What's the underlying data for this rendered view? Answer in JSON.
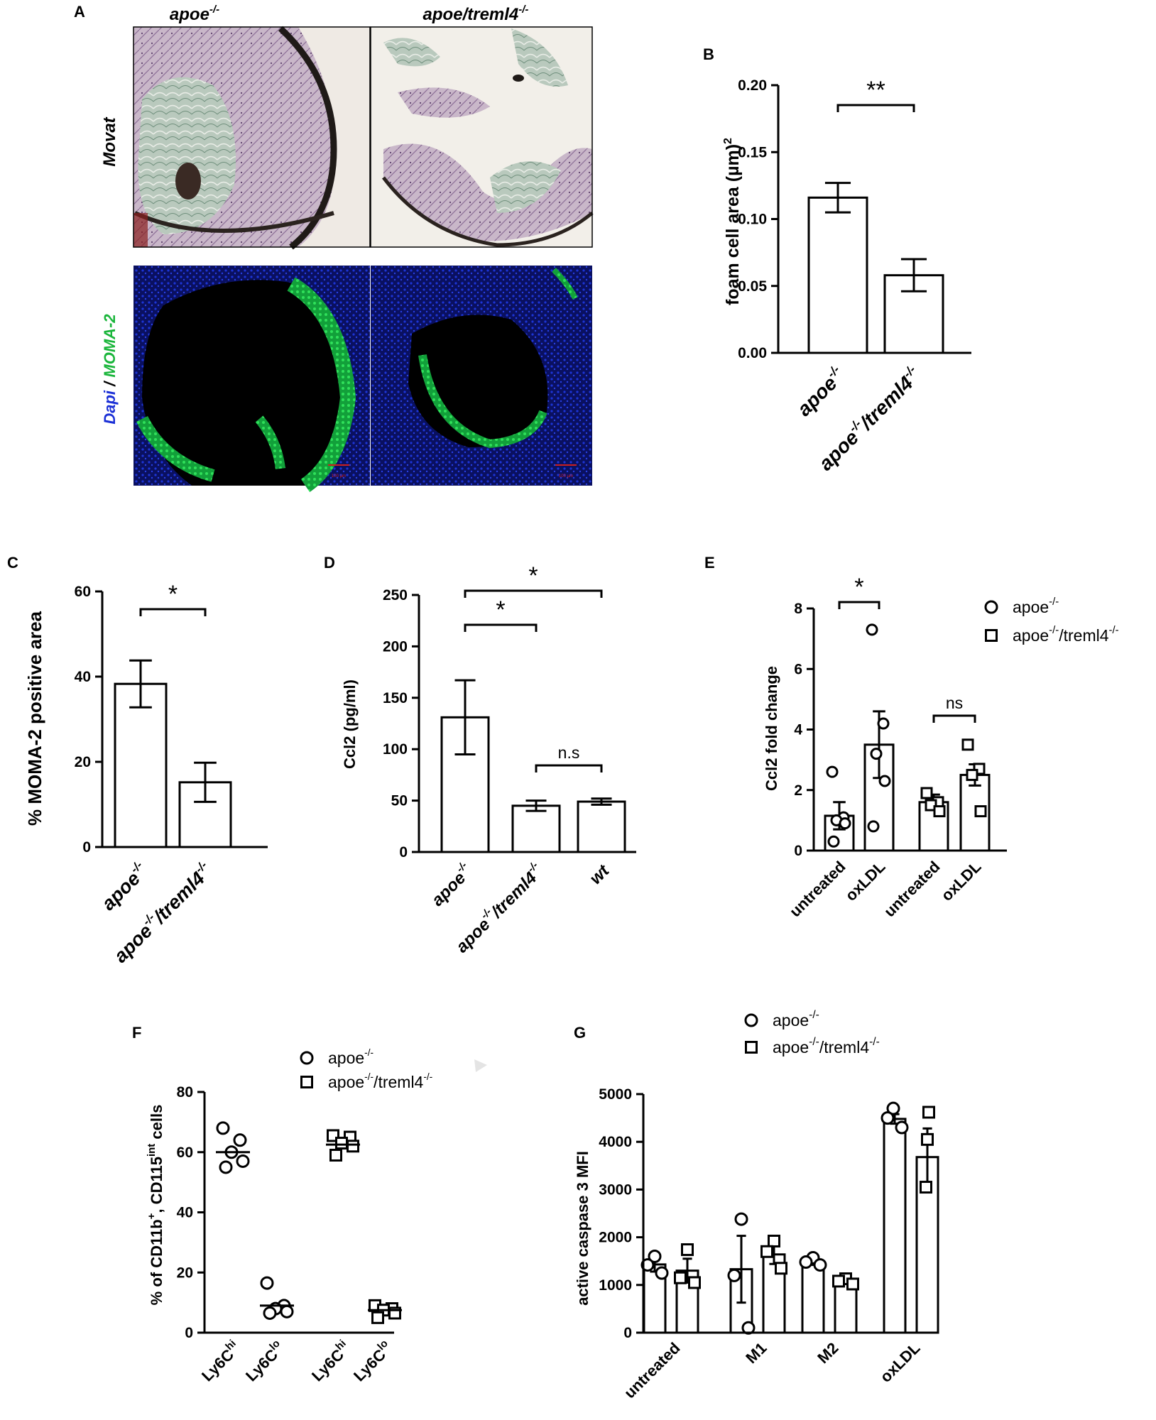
{
  "panel_labels": {
    "A": "A",
    "B": "B",
    "C": "C",
    "D": "D",
    "E": "E",
    "F": "F",
    "G": "G"
  },
  "panel_a": {
    "col_titles": [
      "apoe",
      "apoe/treml4"
    ],
    "row_labels": {
      "movat": "Movat",
      "dapi": "Dapi",
      "sep": "/",
      "moma": "MOMA-2"
    },
    "sup": "-/-",
    "colors": {
      "dapi": "#1a2fd6",
      "moma": "#19b53a",
      "scale": "#cc2020"
    }
  },
  "chart_data": [
    {
      "panel": "B",
      "type": "bar",
      "categories": [
        "apoe",
        "apoe/treml4"
      ],
      "values": [
        0.116,
        0.058
      ],
      "errors": [
        0.011,
        0.012
      ],
      "ylabel": "foam cell area (µm)",
      "ylabel_sup": "2",
      "ylim": [
        0,
        0.2
      ],
      "yticks": [
        "0.00",
        "0.05",
        "0.10",
        "0.15",
        "0.20"
      ],
      "significance": [
        {
          "between": [
            0,
            1
          ],
          "label": "**"
        }
      ]
    },
    {
      "panel": "C",
      "type": "bar",
      "categories": [
        "apoe",
        "apoe/treml4"
      ],
      "values": [
        38.3,
        15.2
      ],
      "errors": [
        5.5,
        4.6
      ],
      "ylabel": "% MOMA-2 positive area",
      "ylim": [
        0,
        60
      ],
      "yticks": [
        "0",
        "20",
        "40",
        "60"
      ],
      "significance": [
        {
          "between": [
            0,
            1
          ],
          "label": "*"
        }
      ]
    },
    {
      "panel": "D",
      "type": "bar",
      "categories": [
        "apoe",
        "apoe/treml4",
        "wt"
      ],
      "values": [
        131,
        45,
        49
      ],
      "errors": [
        36,
        5,
        3
      ],
      "ylabel": "Ccl2 (pg/ml)",
      "ylim": [
        0,
        250
      ],
      "yticks": [
        "0",
        "50",
        "100",
        "150",
        "200",
        "250"
      ],
      "significance": [
        {
          "between": [
            0,
            1
          ],
          "label": "*"
        },
        {
          "between": [
            0,
            2
          ],
          "label": "*"
        },
        {
          "between": [
            1,
            2
          ],
          "label": "n.s"
        }
      ]
    },
    {
      "panel": "E",
      "type": "bar",
      "categories": [
        "untreated",
        "oxLDL",
        "untreated",
        "oxLDL"
      ],
      "groups": [
        "apoe",
        "apoe",
        "apoe/treml4",
        "apoe/treml4"
      ],
      "values": [
        1.15,
        3.5,
        1.6,
        2.5
      ],
      "errors": [
        0.45,
        1.1,
        0.25,
        0.35
      ],
      "points": [
        [
          2.6,
          1.1,
          1.0,
          0.9,
          0.3
        ],
        [
          7.3,
          4.2,
          3.2,
          2.3,
          0.8
        ],
        [
          1.9,
          1.6,
          1.5,
          1.3
        ],
        [
          3.5,
          2.7,
          2.5,
          1.3
        ]
      ],
      "legend": [
        "apoe",
        "apoe/treml4"
      ],
      "ylabel": "Ccl2 fold change",
      "ylim": [
        0,
        8
      ],
      "yticks": [
        "0",
        "2",
        "4",
        "6",
        "8"
      ],
      "significance": [
        {
          "between": [
            0,
            1
          ],
          "label": "*"
        },
        {
          "between": [
            2,
            3
          ],
          "label": "ns"
        }
      ]
    },
    {
      "panel": "F",
      "type": "scatter",
      "categories": [
        "Ly6C",
        "Ly6C",
        "Ly6C",
        "Ly6C"
      ],
      "cat_sups": [
        "hi",
        "lo",
        "hi",
        "lo"
      ],
      "groups": [
        "apoe",
        "apoe",
        "apoe/treml4",
        "apoe/treml4"
      ],
      "means": [
        60,
        9,
        62.5,
        7.5
      ],
      "points": [
        [
          68,
          64,
          60,
          57,
          55
        ],
        [
          16.5,
          9,
          8,
          7,
          6.5
        ],
        [
          65.5,
          65,
          63,
          62,
          59
        ],
        [
          9,
          8,
          7.5,
          6.5,
          5
        ]
      ],
      "legend": [
        "apoe",
        "apoe/treml4"
      ],
      "ylabel": "% of CD11b, CD115 cells",
      "ylabel_sups": [
        "+",
        "int"
      ],
      "ylim": [
        0,
        80
      ],
      "yticks": [
        "0",
        "20",
        "40",
        "60",
        "80"
      ]
    },
    {
      "panel": "G",
      "type": "bar",
      "categories": [
        "untreated",
        "M1",
        "M2",
        "oxLDL"
      ],
      "series": [
        {
          "name": "apoe",
          "values": [
            1430,
            1330,
            1490,
            4480
          ],
          "errors": [
            150,
            700,
            70,
            100
          ],
          "points": [
            [
              1600,
              1420,
              1250
            ],
            [
              2380,
              1200,
              100
            ],
            [
              1570,
              1480,
              1420
            ]
          ]
        },
        {
          "name": "apoe/treml4",
          "values": [
            1300,
            1640,
            1080,
            3680
          ],
          "errors": [
            250,
            200,
            60,
            600
          ],
          "points": [
            [
              1740,
              1150,
              1050
            ],
            [
              1920,
              1700,
              1350
            ],
            [
              1130,
              1080,
              1020
            ]
          ]
        }
      ],
      "extra_points": {
        "apoe_oxLDL": [
          4700,
          4500,
          4300
        ],
        "treml4_oxLDL": [
          4620,
          4050,
          3050
        ]
      },
      "legend": [
        "apoe",
        "apoe/treml4"
      ],
      "ylabel": "active caspase 3 MFI",
      "ylim": [
        0,
        5000
      ],
      "yticks": [
        "0",
        "1000",
        "2000",
        "3000",
        "4000",
        "5000"
      ]
    }
  ]
}
